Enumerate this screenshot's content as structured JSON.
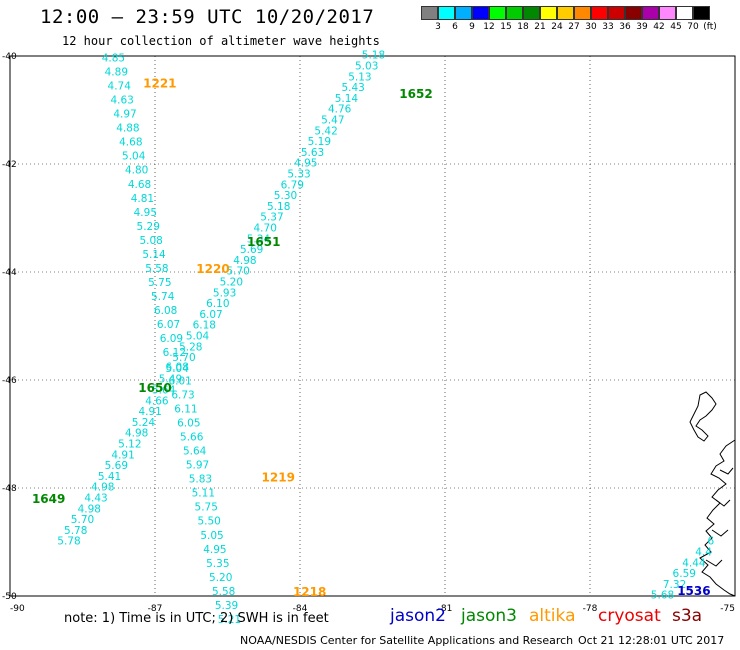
{
  "header": {
    "title": "12:00 – 23:59 UTC 10/20/2017",
    "subtitle": "12 hour collection of altimeter wave heights"
  },
  "color_scale": {
    "unit_label": "(ft)",
    "ticks": [
      "3",
      "6",
      "9",
      "12",
      "15",
      "18",
      "21",
      "24",
      "27",
      "30",
      "33",
      "36",
      "39",
      "42",
      "45",
      "70"
    ],
    "colors": [
      "#808080",
      "#00ffff",
      "#00b0ff",
      "#0000ff",
      "#00ff00",
      "#00cc00",
      "#008800",
      "#ffff00",
      "#ffcc00",
      "#ff8800",
      "#ff0000",
      "#cc0000",
      "#880000",
      "#aa00aa",
      "#ff88ff",
      "#ffffff",
      "#000000"
    ]
  },
  "footer": {
    "note": "note:  1) Time is in UTC;  2) SWH is in feet",
    "legend": [
      {
        "label": "jason2",
        "color": "#0000cc"
      },
      {
        "label": "jason3",
        "color": "#008800"
      },
      {
        "label": "altika",
        "color": "#ff9900"
      },
      {
        "label": "cryosat",
        "color": "#ee0000"
      },
      {
        "label": "s3a",
        "color": "#880000"
      }
    ],
    "credit": "NOAA/NESDIS Center for Satellite Applications and Research",
    "generated": "Oct 21 12:28:01 UTC 2017"
  },
  "chart_data": {
    "type": "scatter",
    "title": "12:00 – 23:59 UTC 10/20/2017",
    "subtitle": "12 hour collection of altimeter wave heights",
    "xlim": [
      -90,
      -75
    ],
    "ylim": [
      -50,
      -40
    ],
    "x_ticks": [
      "-90",
      "-87",
      "-84",
      "-81",
      "-78",
      "-75"
    ],
    "y_ticks": [
      "-40",
      "-42",
      "-44",
      "-46",
      "-48",
      "-50"
    ],
    "grid": true,
    "value_color": "#00d8d8",
    "passes": [
      {
        "satellite": "altika",
        "color": "#ff9900",
        "time_labels": [
          {
            "text": "1221",
            "lon": -86.9,
            "lat": -40.58
          },
          {
            "text": "1220",
            "lon": -85.8,
            "lat": -44.02
          },
          {
            "text": "1219",
            "lon": -84.45,
            "lat": -47.88
          },
          {
            "text": "1218",
            "lon": -83.8,
            "lat": -50.0
          }
        ],
        "points": [
          {
            "lon": -87.86,
            "lat": -40.1,
            "swh": "4.85"
          },
          {
            "lon": -87.8,
            "lat": -40.36,
            "swh": "4.89"
          },
          {
            "lon": -87.74,
            "lat": -40.62,
            "swh": "4.74"
          },
          {
            "lon": -87.68,
            "lat": -40.88,
            "swh": "4.63"
          },
          {
            "lon": -87.62,
            "lat": -41.14,
            "swh": "4.97"
          },
          {
            "lon": -87.56,
            "lat": -41.4,
            "swh": "4.88"
          },
          {
            "lon": -87.5,
            "lat": -41.66,
            "swh": "4.68"
          },
          {
            "lon": -87.44,
            "lat": -41.92,
            "swh": "5.04"
          },
          {
            "lon": -87.38,
            "lat": -42.18,
            "swh": "4.80"
          },
          {
            "lon": -87.32,
            "lat": -42.44,
            "swh": "4.68"
          },
          {
            "lon": -87.26,
            "lat": -42.7,
            "swh": "4.81"
          },
          {
            "lon": -87.2,
            "lat": -42.96,
            "swh": "4.95"
          },
          {
            "lon": -87.14,
            "lat": -43.22,
            "swh": "5.29"
          },
          {
            "lon": -87.08,
            "lat": -43.48,
            "swh": "5.08"
          },
          {
            "lon": -87.02,
            "lat": -43.74,
            "swh": "5.14"
          },
          {
            "lon": -86.96,
            "lat": -44.0,
            "swh": "5.58"
          },
          {
            "lon": -86.9,
            "lat": -44.26,
            "swh": "5.75"
          },
          {
            "lon": -86.84,
            "lat": -44.52,
            "swh": "5.74"
          },
          {
            "lon": -86.78,
            "lat": -44.78,
            "swh": "6.08"
          },
          {
            "lon": -86.72,
            "lat": -45.04,
            "swh": "6.07"
          },
          {
            "lon": -86.66,
            "lat": -45.3,
            "swh": "6.09"
          },
          {
            "lon": -86.6,
            "lat": -45.56,
            "swh": "6.12"
          },
          {
            "lon": -86.54,
            "lat": -45.82,
            "swh": "6.08"
          },
          {
            "lon": -86.48,
            "lat": -46.08,
            "swh": "6.01"
          },
          {
            "lon": -86.42,
            "lat": -46.34,
            "swh": "6.73"
          },
          {
            "lon": -86.36,
            "lat": -46.6,
            "swh": "6.11"
          },
          {
            "lon": -86.3,
            "lat": -46.86,
            "swh": "6.05"
          },
          {
            "lon": -86.24,
            "lat": -47.12,
            "swh": "5.66"
          },
          {
            "lon": -86.18,
            "lat": -47.38,
            "swh": "5.64"
          },
          {
            "lon": -86.12,
            "lat": -47.64,
            "swh": "5.97"
          },
          {
            "lon": -86.06,
            "lat": -47.9,
            "swh": "5.83"
          },
          {
            "lon": -86.0,
            "lat": -48.16,
            "swh": "5.11"
          },
          {
            "lon": -85.94,
            "lat": -48.42,
            "swh": "5.75"
          },
          {
            "lon": -85.88,
            "lat": -48.68,
            "swh": "5.50"
          },
          {
            "lon": -85.82,
            "lat": -48.94,
            "swh": "5.05"
          },
          {
            "lon": -85.76,
            "lat": -49.2,
            "swh": "4.95"
          },
          {
            "lon": -85.7,
            "lat": -49.46,
            "swh": "5.35"
          },
          {
            "lon": -85.64,
            "lat": -49.72,
            "swh": "5.20"
          },
          {
            "lon": -85.58,
            "lat": -49.98,
            "swh": "5.58"
          },
          {
            "lon": -85.52,
            "lat": -50.24,
            "swh": "5.39"
          },
          {
            "lon": -85.46,
            "lat": -50.5,
            "swh": "5.21"
          }
        ]
      },
      {
        "satellite": "jason3",
        "color": "#008800",
        "time_labels": [
          {
            "text": "1652",
            "lon": -81.6,
            "lat": -40.78
          },
          {
            "text": "1651",
            "lon": -84.75,
            "lat": -43.52
          },
          {
            "text": "1650",
            "lon": -87.0,
            "lat": -46.22
          },
          {
            "text": "1649",
            "lon": -89.2,
            "lat": -48.28
          }
        ],
        "points": [
          {
            "lon": -82.48,
            "lat": -40.05,
            "swh": "5.18"
          },
          {
            "lon": -82.62,
            "lat": -40.25,
            "swh": "5.03"
          },
          {
            "lon": -82.76,
            "lat": -40.45,
            "swh": "5.13"
          },
          {
            "lon": -82.9,
            "lat": -40.65,
            "swh": "5.43"
          },
          {
            "lon": -83.04,
            "lat": -40.85,
            "swh": "5.14"
          },
          {
            "lon": -83.18,
            "lat": -41.05,
            "swh": "4.76"
          },
          {
            "lon": -83.32,
            "lat": -41.25,
            "swh": "5.47"
          },
          {
            "lon": -83.46,
            "lat": -41.45,
            "swh": "5.42"
          },
          {
            "lon": -83.6,
            "lat": -41.65,
            "swh": "5.19"
          },
          {
            "lon": -83.74,
            "lat": -41.85,
            "swh": "5.63"
          },
          {
            "lon": -83.88,
            "lat": -42.05,
            "swh": "4.95"
          },
          {
            "lon": -84.02,
            "lat": -42.25,
            "swh": "5.33"
          },
          {
            "lon": -84.16,
            "lat": -42.45,
            "swh": "6.79"
          },
          {
            "lon": -84.3,
            "lat": -42.65,
            "swh": "5.30"
          },
          {
            "lon": -84.44,
            "lat": -42.85,
            "swh": "5.18"
          },
          {
            "lon": -84.58,
            "lat": -43.05,
            "swh": "5.37"
          },
          {
            "lon": -84.72,
            "lat": -43.25,
            "swh": "4.70"
          },
          {
            "lon": -84.86,
            "lat": -43.45,
            "swh": "5.34"
          },
          {
            "lon": -85.0,
            "lat": -43.65,
            "swh": "5.69"
          },
          {
            "lon": -85.14,
            "lat": -43.85,
            "swh": "4.98"
          },
          {
            "lon": -85.28,
            "lat": -44.05,
            "swh": "5.70"
          },
          {
            "lon": -85.42,
            "lat": -44.25,
            "swh": "5.20"
          },
          {
            "lon": -85.56,
            "lat": -44.45,
            "swh": "5.93"
          },
          {
            "lon": -85.7,
            "lat": -44.65,
            "swh": "6.10"
          },
          {
            "lon": -85.84,
            "lat": -44.85,
            "swh": "6.07"
          },
          {
            "lon": -85.98,
            "lat": -45.05,
            "swh": "6.18"
          },
          {
            "lon": -86.12,
            "lat": -45.25,
            "swh": "5.04"
          },
          {
            "lon": -86.26,
            "lat": -45.45,
            "swh": "5.28"
          },
          {
            "lon": -86.4,
            "lat": -45.65,
            "swh": "5.70"
          },
          {
            "lon": -86.54,
            "lat": -45.85,
            "swh": "5.04"
          },
          {
            "lon": -86.68,
            "lat": -46.05,
            "swh": "5.49"
          },
          {
            "lon": -86.82,
            "lat": -46.25,
            "swh": "5.64"
          },
          {
            "lon": -86.96,
            "lat": -46.45,
            "swh": "4.66"
          },
          {
            "lon": -87.1,
            "lat": -46.65,
            "swh": "4.91"
          },
          {
            "lon": -87.24,
            "lat": -46.85,
            "swh": "5.24"
          },
          {
            "lon": -87.38,
            "lat": -47.05,
            "swh": "4.98"
          },
          {
            "lon": -87.52,
            "lat": -47.25,
            "swh": "5.12"
          },
          {
            "lon": -87.66,
            "lat": -47.45,
            "swh": "4.91"
          },
          {
            "lon": -87.8,
            "lat": -47.65,
            "swh": "5.69"
          },
          {
            "lon": -87.94,
            "lat": -47.85,
            "swh": "5.41"
          },
          {
            "lon": -88.08,
            "lat": -48.05,
            "swh": "4.98"
          },
          {
            "lon": -88.22,
            "lat": -48.25,
            "swh": "4.43"
          },
          {
            "lon": -88.36,
            "lat": -48.45,
            "swh": "4.98"
          },
          {
            "lon": -88.5,
            "lat": -48.65,
            "swh": "5.70"
          },
          {
            "lon": -88.64,
            "lat": -48.85,
            "swh": "5.78"
          },
          {
            "lon": -88.78,
            "lat": -49.05,
            "swh": "5.78"
          }
        ]
      },
      {
        "satellite": "jason2",
        "color": "#0000cc",
        "time_labels": [
          {
            "text": "1536",
            "lon": -75.85,
            "lat": -49.98
          }
        ],
        "points": [
          {
            "lon": -75.5,
            "lat": -49.05,
            "swh": "6"
          },
          {
            "lon": -75.65,
            "lat": -49.25,
            "swh": "4.4"
          },
          {
            "lon": -75.85,
            "lat": -49.45,
            "swh": "4.44"
          },
          {
            "lon": -76.05,
            "lat": -49.65,
            "swh": "6.59"
          },
          {
            "lon": -76.25,
            "lat": -49.85,
            "swh": "7.32"
          },
          {
            "lon": -76.5,
            "lat": -50.05,
            "swh": "5.68"
          }
        ]
      }
    ]
  }
}
